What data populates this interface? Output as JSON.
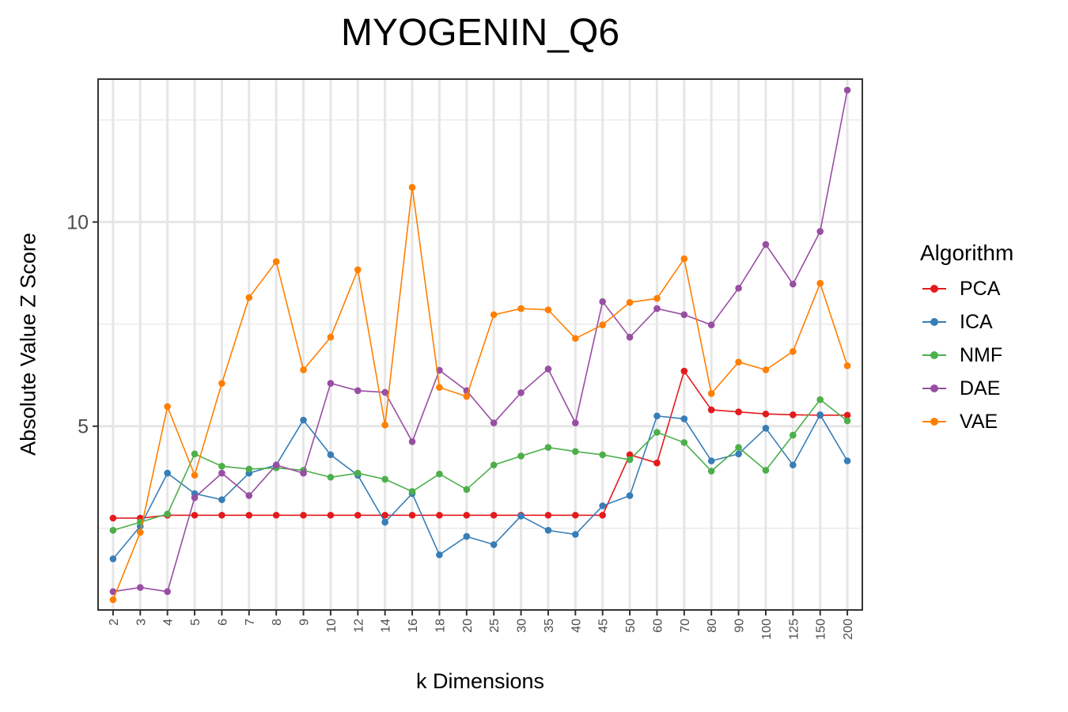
{
  "chart_data": {
    "type": "line",
    "title": "MYOGENIN_Q6",
    "xlabel": "k Dimensions",
    "ylabel": "Absolute Value Z Score",
    "x": [
      "2",
      "3",
      "4",
      "5",
      "6",
      "7",
      "8",
      "9",
      "10",
      "12",
      "14",
      "16",
      "18",
      "20",
      "25",
      "30",
      "35",
      "40",
      "45",
      "50",
      "60",
      "70",
      "80",
      "90",
      "100",
      "125",
      "150",
      "200"
    ],
    "ylim": [
      0.5,
      13.5
    ],
    "yticks": [
      "5",
      "10"
    ],
    "grid": true,
    "legend": {
      "title": "Algorithm",
      "position": "right"
    },
    "series": [
      {
        "name": "PCA",
        "color": "#e41a1c",
        "values": [
          2.75,
          2.75,
          2.82,
          2.82,
          2.82,
          2.82,
          2.82,
          2.82,
          2.82,
          2.82,
          2.82,
          2.82,
          2.82,
          2.82,
          2.82,
          2.82,
          2.82,
          2.82,
          2.82,
          4.3,
          4.1,
          6.35,
          5.4,
          5.35,
          5.3,
          5.28,
          5.27,
          5.27
        ]
      },
      {
        "name": "ICA",
        "color": "#377eb8",
        "values": [
          1.75,
          2.55,
          3.85,
          3.35,
          3.2,
          3.85,
          4.05,
          5.15,
          4.3,
          3.8,
          2.65,
          3.35,
          1.85,
          2.3,
          2.1,
          2.8,
          2.45,
          2.35,
          3.05,
          3.3,
          5.25,
          5.18,
          4.15,
          4.32,
          4.95,
          4.05,
          5.28,
          4.15
        ]
      },
      {
        "name": "NMF",
        "color": "#4daf4a",
        "values": [
          2.45,
          2.65,
          2.85,
          4.32,
          4.02,
          3.95,
          3.98,
          3.92,
          3.75,
          3.85,
          3.7,
          3.4,
          3.83,
          3.45,
          4.05,
          4.27,
          4.48,
          4.38,
          4.3,
          4.18,
          4.85,
          4.6,
          3.9,
          4.48,
          3.92,
          4.78,
          5.65,
          5.13
        ]
      },
      {
        "name": "DAE",
        "color": "#984ea3",
        "values": [
          0.95,
          1.05,
          0.95,
          3.25,
          3.85,
          3.3,
          4.05,
          3.85,
          6.05,
          5.87,
          5.83,
          4.62,
          6.37,
          5.87,
          5.08,
          5.82,
          6.4,
          5.08,
          8.05,
          7.18,
          7.88,
          7.73,
          7.48,
          8.38,
          9.45,
          8.48,
          9.77,
          13.23
        ]
      },
      {
        "name": "VAE",
        "color": "#ff7f00",
        "values": [
          0.75,
          2.4,
          5.48,
          3.8,
          6.05,
          8.15,
          9.03,
          6.38,
          7.18,
          8.83,
          5.03,
          10.85,
          5.95,
          5.73,
          7.73,
          7.88,
          7.85,
          7.15,
          7.48,
          8.03,
          8.13,
          9.1,
          5.8,
          6.57,
          6.38,
          6.83,
          8.5,
          6.48
        ]
      }
    ]
  }
}
